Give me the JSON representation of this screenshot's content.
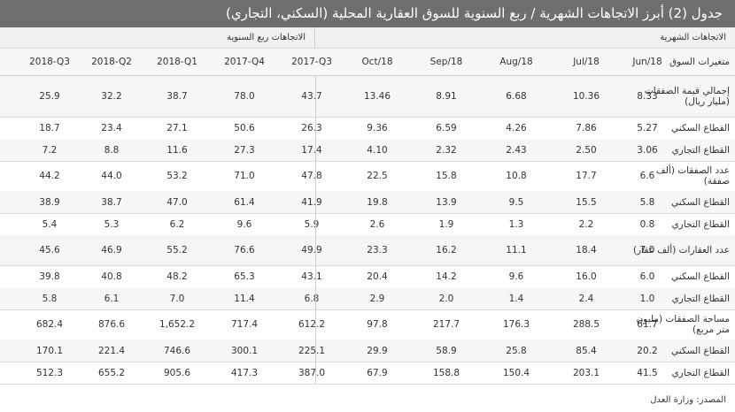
{
  "title": "جدول (2) أبرز الاتجاهات الشهرية / ربع السنوية للسوق العقارية المحلية (السكني، التجاري)",
  "section_monthly": "الاتجاهات الشهرية",
  "section_quarterly": "الاتجاهات ربع السنوية",
  "variables_header": "متغيرات السوق",
  "columns": [
    "Jun/18",
    "Jul/18",
    "Aug/18",
    "Sep/18",
    "Oct/18",
    "2017-Q3",
    "2017-Q4",
    "2018-Q1",
    "2018-Q2",
    "2018-Q3"
  ],
  "rows": [
    {
      "label": "إجمالي قيمة الصفقات (مليار ريال)",
      "values": [
        "8.33",
        "10.36",
        "6.68",
        "8.91",
        "13.46",
        "43.7",
        "78.0",
        "38.7",
        "32.2",
        "25.9"
      ]
    },
    {
      "label": "القطاع السكني",
      "values": [
        "5.27",
        "7.86",
        "4.26",
        "6.59",
        "9.36",
        "26.3",
        "50.6",
        "27.1",
        "23.4",
        "18.7"
      ]
    },
    {
      "label": "القطاع التجاري",
      "values": [
        "3.06",
        "2.50",
        "2.43",
        "2.32",
        "4.10",
        "17.4",
        "27.3",
        "11.6",
        "8.8",
        "7.2"
      ]
    },
    {
      "label": "عدد الصفقات (ألف صفقة)",
      "values": [
        "6.6",
        "17.7",
        "10.8",
        "15.8",
        "22.5",
        "47.8",
        "71.0",
        "53.2",
        "44.0",
        "44.2"
      ]
    },
    {
      "label": "القطاع السكني",
      "values": [
        "5.8",
        "15.5",
        "9.5",
        "13.9",
        "19.8",
        "41.9",
        "61.4",
        "47.0",
        "38.7",
        "38.9"
      ]
    },
    {
      "label": "القطاع التجاري",
      "values": [
        "0.8",
        "2.2",
        "1.3",
        "1.9",
        "2.6",
        "5.9",
        "9.6",
        "6.2",
        "5.3",
        "5.4"
      ]
    },
    {
      "label": "عدد العقارات (ألف عقار)",
      "values": [
        "7.0",
        "18.4",
        "11.1",
        "16.2",
        "23.3",
        "49.9",
        "76.6",
        "55.2",
        "46.9",
        "45.6"
      ]
    },
    {
      "label": "القطاع السكني",
      "values": [
        "6.0",
        "16.0",
        "9.6",
        "14.2",
        "20.4",
        "43.1",
        "65.3",
        "48.2",
        "40.8",
        "39.8"
      ]
    },
    {
      "label": "القطاع التجاري",
      "values": [
        "1.0",
        "2.4",
        "1.4",
        "2.0",
        "2.9",
        "6.8",
        "11.4",
        "7.0",
        "6.1",
        "5.8"
      ]
    },
    {
      "label": "مساحة الصفقات (مليون متر مربع)",
      "values": [
        "61.7",
        "288.5",
        "176.3",
        "217.7",
        "97.8",
        "612.2",
        "717.4",
        "1,652.2",
        "876.6",
        "682.4"
      ]
    },
    {
      "label": "القطاع السكني",
      "values": [
        "20.2",
        "85.4",
        "25.8",
        "58.9",
        "29.9",
        "225.1",
        "300.1",
        "746.6",
        "221.4",
        "170.1"
      ]
    },
    {
      "label": "القطاع التجاري",
      "values": [
        "41.5",
        "203.1",
        "150.4",
        "158.8",
        "67.9",
        "387.0",
        "417.3",
        "905.6",
        "655.2",
        "512.3"
      ]
    }
  ],
  "source": "المصدر: وزارة العدل"
}
